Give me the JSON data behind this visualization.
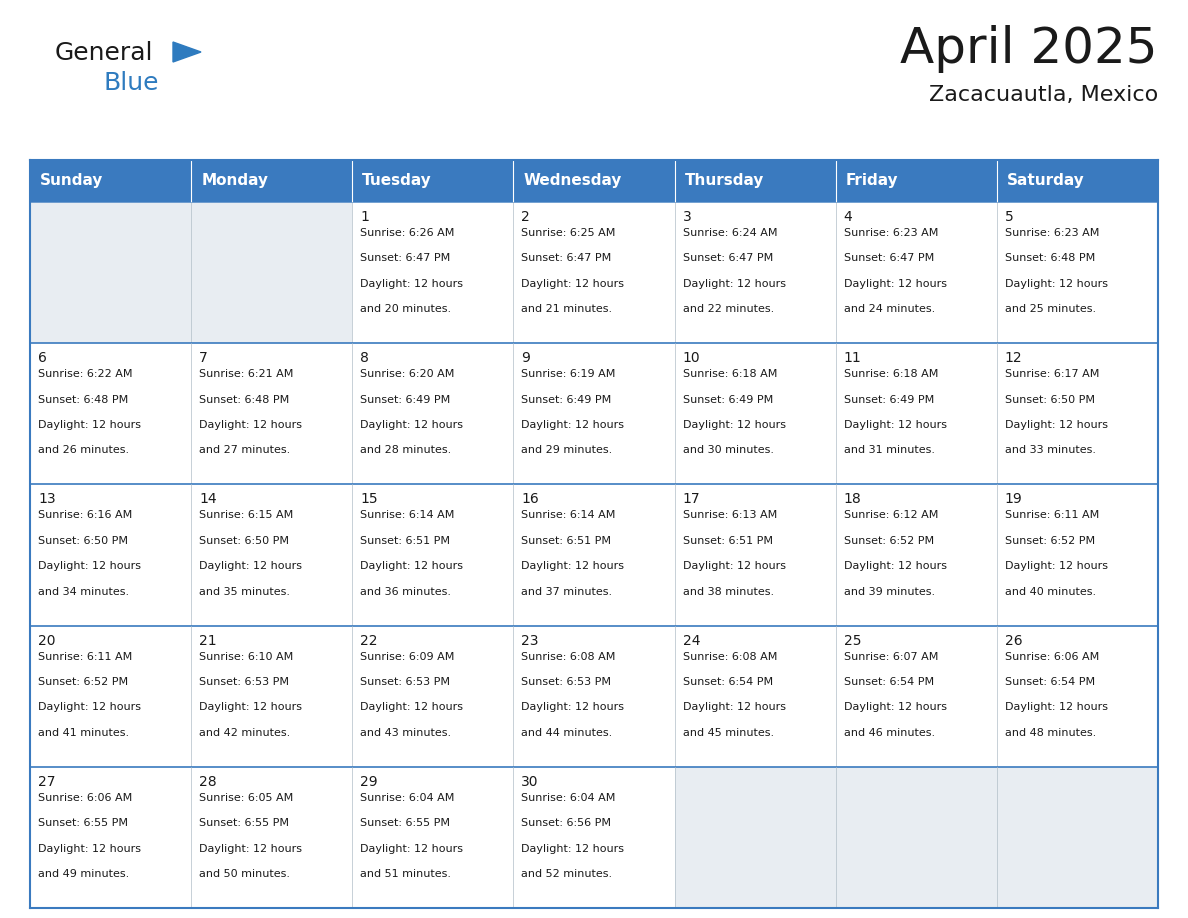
{
  "title": "April 2025",
  "subtitle": "Zacacuautla, Mexico",
  "header_bg": "#3a7abf",
  "header_text_color": "#ffffff",
  "cell_bg_empty": "#e8edf2",
  "cell_bg_filled": "#ffffff",
  "grid_color": "#3a7abf",
  "grid_color_inner": "#aab8c8",
  "day_names": [
    "Sunday",
    "Monday",
    "Tuesday",
    "Wednesday",
    "Thursday",
    "Friday",
    "Saturday"
  ],
  "weeks": [
    [
      {
        "day": "",
        "sunrise": "",
        "sunset": "",
        "daylight": ""
      },
      {
        "day": "",
        "sunrise": "",
        "sunset": "",
        "daylight": ""
      },
      {
        "day": "1",
        "sunrise": "6:26 AM",
        "sunset": "6:47 PM",
        "daylight": "12 hours and 20 minutes."
      },
      {
        "day": "2",
        "sunrise": "6:25 AM",
        "sunset": "6:47 PM",
        "daylight": "12 hours and 21 minutes."
      },
      {
        "day": "3",
        "sunrise": "6:24 AM",
        "sunset": "6:47 PM",
        "daylight": "12 hours and 22 minutes."
      },
      {
        "day": "4",
        "sunrise": "6:23 AM",
        "sunset": "6:47 PM",
        "daylight": "12 hours and 24 minutes."
      },
      {
        "day": "5",
        "sunrise": "6:23 AM",
        "sunset": "6:48 PM",
        "daylight": "12 hours and 25 minutes."
      }
    ],
    [
      {
        "day": "6",
        "sunrise": "6:22 AM",
        "sunset": "6:48 PM",
        "daylight": "12 hours and 26 minutes."
      },
      {
        "day": "7",
        "sunrise": "6:21 AM",
        "sunset": "6:48 PM",
        "daylight": "12 hours and 27 minutes."
      },
      {
        "day": "8",
        "sunrise": "6:20 AM",
        "sunset": "6:49 PM",
        "daylight": "12 hours and 28 minutes."
      },
      {
        "day": "9",
        "sunrise": "6:19 AM",
        "sunset": "6:49 PM",
        "daylight": "12 hours and 29 minutes."
      },
      {
        "day": "10",
        "sunrise": "6:18 AM",
        "sunset": "6:49 PM",
        "daylight": "12 hours and 30 minutes."
      },
      {
        "day": "11",
        "sunrise": "6:18 AM",
        "sunset": "6:49 PM",
        "daylight": "12 hours and 31 minutes."
      },
      {
        "day": "12",
        "sunrise": "6:17 AM",
        "sunset": "6:50 PM",
        "daylight": "12 hours and 33 minutes."
      }
    ],
    [
      {
        "day": "13",
        "sunrise": "6:16 AM",
        "sunset": "6:50 PM",
        "daylight": "12 hours and 34 minutes."
      },
      {
        "day": "14",
        "sunrise": "6:15 AM",
        "sunset": "6:50 PM",
        "daylight": "12 hours and 35 minutes."
      },
      {
        "day": "15",
        "sunrise": "6:14 AM",
        "sunset": "6:51 PM",
        "daylight": "12 hours and 36 minutes."
      },
      {
        "day": "16",
        "sunrise": "6:14 AM",
        "sunset": "6:51 PM",
        "daylight": "12 hours and 37 minutes."
      },
      {
        "day": "17",
        "sunrise": "6:13 AM",
        "sunset": "6:51 PM",
        "daylight": "12 hours and 38 minutes."
      },
      {
        "day": "18",
        "sunrise": "6:12 AM",
        "sunset": "6:52 PM",
        "daylight": "12 hours and 39 minutes."
      },
      {
        "day": "19",
        "sunrise": "6:11 AM",
        "sunset": "6:52 PM",
        "daylight": "12 hours and 40 minutes."
      }
    ],
    [
      {
        "day": "20",
        "sunrise": "6:11 AM",
        "sunset": "6:52 PM",
        "daylight": "12 hours and 41 minutes."
      },
      {
        "day": "21",
        "sunrise": "6:10 AM",
        "sunset": "6:53 PM",
        "daylight": "12 hours and 42 minutes."
      },
      {
        "day": "22",
        "sunrise": "6:09 AM",
        "sunset": "6:53 PM",
        "daylight": "12 hours and 43 minutes."
      },
      {
        "day": "23",
        "sunrise": "6:08 AM",
        "sunset": "6:53 PM",
        "daylight": "12 hours and 44 minutes."
      },
      {
        "day": "24",
        "sunrise": "6:08 AM",
        "sunset": "6:54 PM",
        "daylight": "12 hours and 45 minutes."
      },
      {
        "day": "25",
        "sunrise": "6:07 AM",
        "sunset": "6:54 PM",
        "daylight": "12 hours and 46 minutes."
      },
      {
        "day": "26",
        "sunrise": "6:06 AM",
        "sunset": "6:54 PM",
        "daylight": "12 hours and 48 minutes."
      }
    ],
    [
      {
        "day": "27",
        "sunrise": "6:06 AM",
        "sunset": "6:55 PM",
        "daylight": "12 hours and 49 minutes."
      },
      {
        "day": "28",
        "sunrise": "6:05 AM",
        "sunset": "6:55 PM",
        "daylight": "12 hours and 50 minutes."
      },
      {
        "day": "29",
        "sunrise": "6:04 AM",
        "sunset": "6:55 PM",
        "daylight": "12 hours and 51 minutes."
      },
      {
        "day": "30",
        "sunrise": "6:04 AM",
        "sunset": "6:56 PM",
        "daylight": "12 hours and 52 minutes."
      },
      {
        "day": "",
        "sunrise": "",
        "sunset": "",
        "daylight": ""
      },
      {
        "day": "",
        "sunrise": "",
        "sunset": "",
        "daylight": ""
      },
      {
        "day": "",
        "sunrise": "",
        "sunset": "",
        "daylight": ""
      }
    ]
  ],
  "logo_text_general": "General",
  "logo_text_blue": "Blue",
  "logo_color_general": "#1a1a1a",
  "logo_color_blue": "#2e7bbf",
  "logo_triangle_color": "#2e7bbf",
  "title_fontsize": 36,
  "subtitle_fontsize": 16,
  "header_fontsize": 11,
  "day_num_fontsize": 10,
  "cell_text_fontsize": 8
}
